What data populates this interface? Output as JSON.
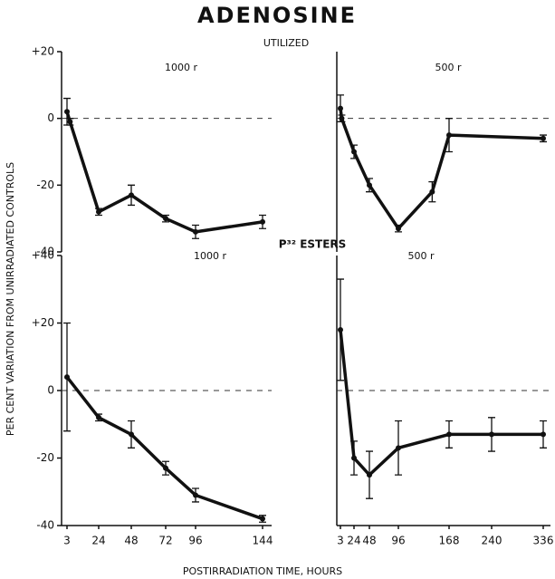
{
  "title": "ADENOSINE",
  "top_label": "UTILIZED",
  "bottom_label": "P³² ESTERS",
  "y_label": "PER CENT VARIATION FROM UNIRRADIATED CONTROLS",
  "x_label": "POSTIRRADIATION TIME, HOURS",
  "chart_data": [
    {
      "type": "line",
      "subtitle": "1000 r",
      "x": [
        3,
        5,
        24,
        48,
        72,
        96,
        144
      ],
      "values": [
        2,
        -1,
        -28,
        -23,
        -30,
        -34,
        -31
      ],
      "errors": [
        4,
        1,
        1,
        3,
        1,
        2,
        2
      ],
      "ylim": [
        -40,
        20
      ],
      "yticks": [
        {
          "value": 20,
          "label": "+20"
        },
        0,
        -20,
        -40
      ],
      "color": "#111111"
    },
    {
      "type": "line",
      "subtitle": "500 r",
      "x": [
        3,
        5,
        24,
        48,
        96,
        144,
        168,
        336
      ],
      "values": [
        3,
        0,
        -10,
        -20,
        -33,
        -22,
        -5,
        -6
      ],
      "errors": [
        4,
        1,
        2,
        2,
        1,
        3,
        5,
        1
      ],
      "ylim": [
        -40,
        20
      ],
      "color": "#111111"
    },
    {
      "type": "line",
      "subtitle": "1000 r",
      "x": [
        3,
        24,
        48,
        72,
        96,
        144
      ],
      "values": [
        4,
        -8,
        -13,
        -23,
        -31,
        -38
      ],
      "errors": [
        16,
        1,
        4,
        2,
        2,
        1
      ],
      "ylim": [
        -40,
        40
      ],
      "yticks": [
        {
          "value": 40,
          "label": "+40"
        },
        {
          "value": 20,
          "label": "+20"
        },
        0,
        -20,
        -40
      ],
      "xticks": [
        3,
        24,
        48,
        72,
        96,
        144
      ],
      "color": "#111111"
    },
    {
      "type": "line",
      "subtitle": "500 r",
      "x": [
        3,
        24,
        48,
        96,
        168,
        240,
        336
      ],
      "values": [
        18,
        -20,
        -25,
        -17,
        -13,
        -13,
        -13
      ],
      "errors": [
        15,
        5,
        7,
        8,
        4,
        5,
        4
      ],
      "ylim": [
        -40,
        40
      ],
      "xticks": [
        3,
        24,
        48,
        96,
        168,
        240,
        336
      ],
      "color": "#111111"
    }
  ]
}
